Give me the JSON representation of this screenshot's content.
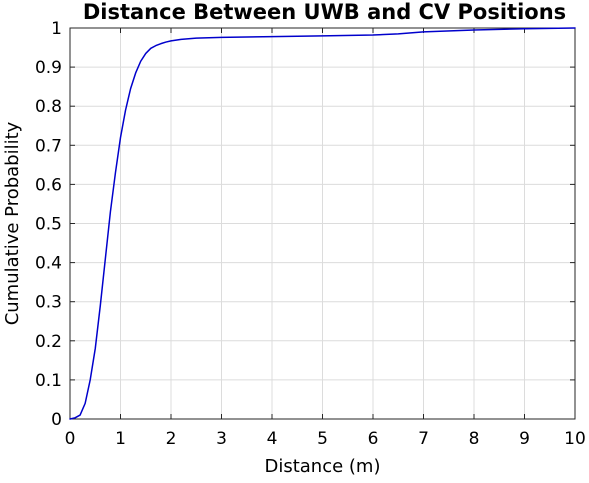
{
  "chart_data": {
    "type": "line",
    "title": "Distance Between UWB and CV Positions",
    "xlabel": "Distance (m)",
    "ylabel": "Cumulative Probability",
    "xlim": [
      0,
      10
    ],
    "ylim": [
      0,
      1
    ],
    "grid": true,
    "legend": "none",
    "xticks": [
      "0",
      "1",
      "2",
      "3",
      "4",
      "5",
      "6",
      "7",
      "8",
      "9",
      "10"
    ],
    "yticks": [
      "0",
      "0.1",
      "0.2",
      "0.3",
      "0.4",
      "0.5",
      "0.6",
      "0.7",
      "0.8",
      "0.9",
      "1"
    ],
    "series": [
      {
        "color": "#0000cc",
        "x": [
          0,
          0.1,
          0.2,
          0.3,
          0.4,
          0.5,
          0.6,
          0.7,
          0.8,
          0.9,
          1.0,
          1.1,
          1.2,
          1.3,
          1.4,
          1.5,
          1.6,
          1.7,
          1.8,
          1.9,
          2.0,
          2.2,
          2.5,
          3.0,
          4.0,
          5.0,
          6.0,
          6.5,
          7.0,
          8.0,
          9.0,
          9.5,
          10.0
        ],
        "y": [
          0,
          0.003,
          0.01,
          0.04,
          0.1,
          0.18,
          0.29,
          0.41,
          0.53,
          0.63,
          0.72,
          0.79,
          0.845,
          0.885,
          0.915,
          0.935,
          0.948,
          0.955,
          0.96,
          0.964,
          0.967,
          0.971,
          0.974,
          0.976,
          0.978,
          0.98,
          0.982,
          0.985,
          0.99,
          0.995,
          0.998,
          0.999,
          1.0
        ]
      }
    ]
  }
}
